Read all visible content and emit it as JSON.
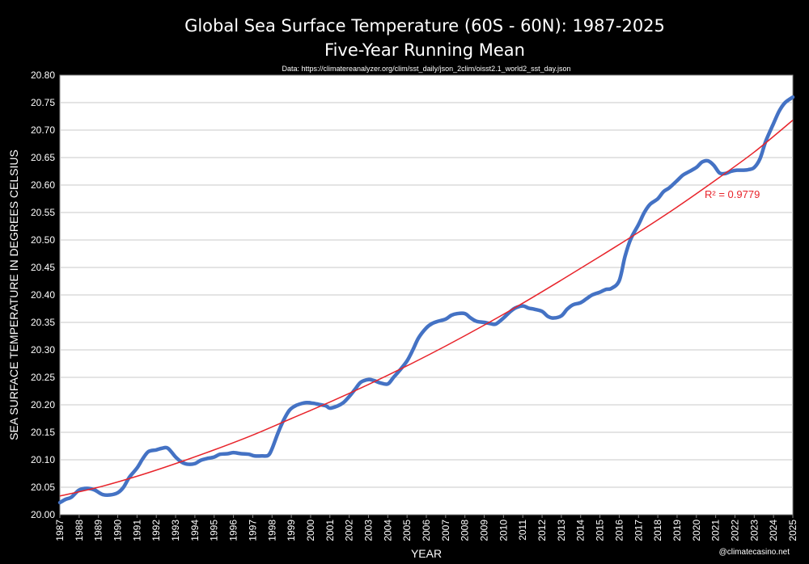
{
  "chart_data": {
    "type": "line",
    "title": "Global Sea Surface Temperature (60S - 60N): 1987-2025",
    "subtitle": "Five-Year Running Mean",
    "source": "Data: https://climatereanalyzer.org/clim/sst_daily/json_2clim/oisst2.1_world2_sst_day.json",
    "xlabel": "YEAR",
    "ylabel": "SEA SURFACE TEMPERATURE IN DEGREES CELSIUS",
    "xlim": [
      1987,
      2025
    ],
    "ylim": [
      20.0,
      20.8
    ],
    "x_ticks": [
      "1987",
      "1988",
      "1989",
      "1990",
      "1991",
      "1992",
      "1993",
      "1994",
      "1995",
      "1996",
      "1997",
      "1998",
      "1999",
      "2000",
      "2001",
      "2002",
      "2003",
      "2004",
      "2005",
      "2006",
      "2007",
      "2008",
      "2009",
      "2010",
      "2011",
      "2012",
      "2013",
      "2014",
      "2015",
      "2016",
      "2017",
      "2018",
      "2019",
      "2020",
      "2021",
      "2022",
      "2023",
      "2024",
      "2025"
    ],
    "y_ticks": [
      "20.00",
      "20.05",
      "20.10",
      "20.15",
      "20.20",
      "20.25",
      "20.30",
      "20.35",
      "20.40",
      "20.45",
      "20.50",
      "20.55",
      "20.60",
      "20.65",
      "20.70",
      "20.75",
      "20.80"
    ],
    "grid": true,
    "series": [
      {
        "name": "Five-Year Running Mean",
        "color": "#4472c4",
        "x": [
          1987.0,
          1987.3,
          1987.6,
          1988.0,
          1988.4,
          1988.8,
          1989.2,
          1989.6,
          1990.0,
          1990.3,
          1990.6,
          1991.0,
          1991.3,
          1991.6,
          1992.0,
          1992.3,
          1992.6,
          1993.0,
          1993.3,
          1993.6,
          1994.0,
          1994.3,
          1994.6,
          1995.0,
          1995.3,
          1995.7,
          1996.0,
          1996.4,
          1996.8,
          1997.1,
          1997.5,
          1997.8,
          1998.0,
          1998.3,
          1998.6,
          1998.9,
          1999.2,
          1999.5,
          1999.8,
          2000.1,
          2000.4,
          2000.8,
          2001.0,
          2001.4,
          2001.7,
          2002.0,
          2002.3,
          2002.6,
          2003.0,
          2003.3,
          2003.6,
          2004.0,
          2004.3,
          2004.6,
          2005.0,
          2005.3,
          2005.6,
          2006.0,
          2006.3,
          2006.6,
          2007.0,
          2007.3,
          2007.6,
          2008.0,
          2008.3,
          2008.6,
          2009.0,
          2009.3,
          2009.6,
          2010.0,
          2010.3,
          2010.6,
          2011.0,
          2011.3,
          2011.6,
          2012.0,
          2012.3,
          2012.6,
          2013.0,
          2013.3,
          2013.6,
          2014.0,
          2014.3,
          2014.6,
          2015.0,
          2015.3,
          2015.6,
          2016.0,
          2016.3,
          2016.6,
          2017.0,
          2017.3,
          2017.6,
          2018.0,
          2018.3,
          2018.6,
          2019.0,
          2019.3,
          2019.6,
          2020.0,
          2020.3,
          2020.6,
          2020.9,
          2021.2,
          2021.5,
          2021.8,
          2022.1,
          2022.4,
          2022.7,
          2023.0,
          2023.3,
          2023.6,
          2024.0,
          2024.3,
          2024.6,
          2025.0
        ],
        "values": [
          20.022,
          20.028,
          20.032,
          20.045,
          20.048,
          20.045,
          20.037,
          20.036,
          20.04,
          20.05,
          20.068,
          20.085,
          20.102,
          20.115,
          20.118,
          20.121,
          20.121,
          20.105,
          20.096,
          20.092,
          20.093,
          20.099,
          20.102,
          20.105,
          20.11,
          20.111,
          20.113,
          20.111,
          20.11,
          20.107,
          20.107,
          20.108,
          20.12,
          20.148,
          20.172,
          20.19,
          20.198,
          20.202,
          20.204,
          20.203,
          20.201,
          20.198,
          20.194,
          20.198,
          20.204,
          20.215,
          20.228,
          20.241,
          20.246,
          20.244,
          20.24,
          20.238,
          20.25,
          20.262,
          20.28,
          20.3,
          20.322,
          20.34,
          20.348,
          20.352,
          20.356,
          20.363,
          20.366,
          20.366,
          20.358,
          20.352,
          20.35,
          20.348,
          20.347,
          20.358,
          20.368,
          20.376,
          20.38,
          20.376,
          20.374,
          20.37,
          20.361,
          20.358,
          20.362,
          20.374,
          20.382,
          20.386,
          20.393,
          20.4,
          20.405,
          20.41,
          20.412,
          20.426,
          20.47,
          20.502,
          20.528,
          20.55,
          20.565,
          20.575,
          20.588,
          20.595,
          20.608,
          20.618,
          20.624,
          20.632,
          20.642,
          20.644,
          20.636,
          20.622,
          20.621,
          20.625,
          20.627,
          20.627,
          20.628,
          20.632,
          20.648,
          20.68,
          20.712,
          20.735,
          20.75,
          20.76
        ]
      },
      {
        "name": "Polynomial trend",
        "color": "#e8242b",
        "x": [
          1987,
          1989,
          1991,
          1993,
          1995,
          1997,
          1999,
          2001,
          2003,
          2005,
          2007,
          2009,
          2011,
          2013,
          2015,
          2017,
          2019,
          2021,
          2023,
          2025
        ],
        "values": [
          20.034,
          20.05,
          20.07,
          20.093,
          20.118,
          20.145,
          20.175,
          20.205,
          20.237,
          20.271,
          20.307,
          20.345,
          20.385,
          20.427,
          20.47,
          20.514,
          20.56,
          20.609,
          20.66,
          20.718
        ]
      }
    ],
    "annotation": "R² = 0.9779",
    "credit": "@climatecasino.net"
  }
}
